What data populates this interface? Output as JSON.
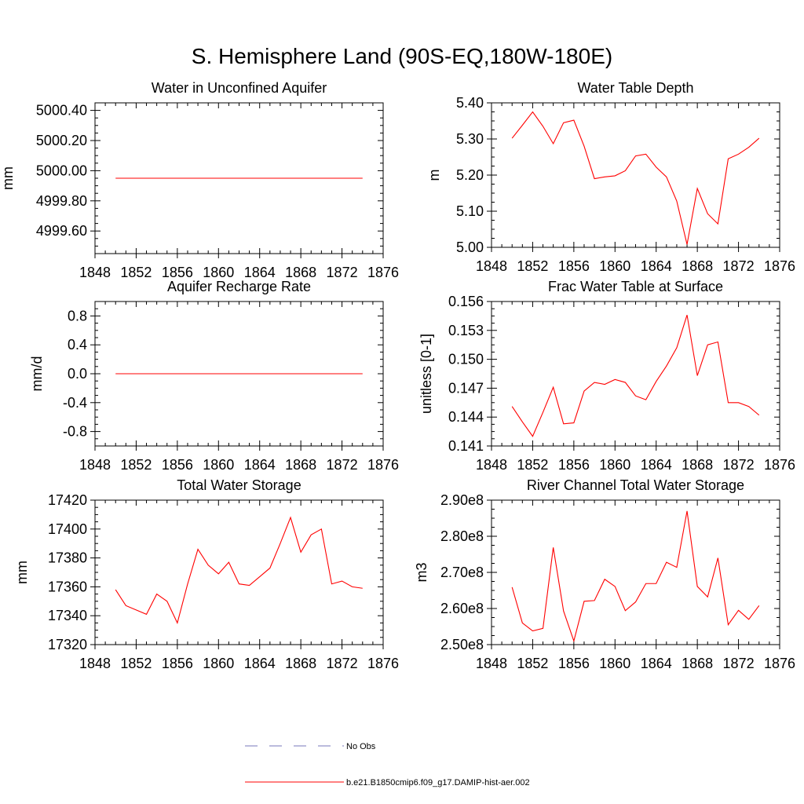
{
  "title": "S. Hemisphere Land (90S-EQ,180W-180E)",
  "colors": {
    "series": "#ff0000",
    "obs": "#7777bb",
    "axis": "#000000"
  },
  "legend": {
    "items": [
      {
        "label": "No Obs",
        "style": "dashed",
        "color": "#7777bb"
      },
      {
        "label": "b.e21.B1850cmip6.f09_g17.DAMIP-hist-aer.002",
        "style": "solid",
        "color": "#ff0000"
      }
    ]
  },
  "chart_data": [
    {
      "type": "line",
      "title": "Water in Unconfined Aquifer",
      "ylabel": "mm",
      "xlim": [
        1848,
        1876
      ],
      "ylim": [
        4999.45,
        5000.45
      ],
      "xticks": [
        1848,
        1852,
        1856,
        1860,
        1864,
        1868,
        1872,
        1876
      ],
      "xtick_labels": [
        "1848",
        "1852",
        "1856",
        "1860",
        "1864",
        "1868",
        "1872",
        "1876"
      ],
      "yticks": [
        4999.6,
        4999.8,
        5000.0,
        5000.2,
        5000.4
      ],
      "ytick_labels": [
        "4999.60",
        "4999.80",
        "5000.00",
        "5000.20",
        "5000.40"
      ],
      "x": [
        1850,
        1851,
        1852,
        1853,
        1854,
        1855,
        1856,
        1857,
        1858,
        1859,
        1860,
        1861,
        1862,
        1863,
        1864,
        1865,
        1866,
        1867,
        1868,
        1869,
        1870,
        1871,
        1872,
        1873,
        1874
      ],
      "series": [
        {
          "values": [
            4999.95,
            4999.95,
            4999.95,
            4999.95,
            4999.95,
            4999.95,
            4999.95,
            4999.95,
            4999.95,
            4999.95,
            4999.95,
            4999.95,
            4999.95,
            4999.95,
            4999.95,
            4999.95,
            4999.95,
            4999.95,
            4999.95,
            4999.95,
            4999.95,
            4999.95,
            4999.95,
            4999.95,
            4999.95
          ]
        }
      ]
    },
    {
      "type": "line",
      "title": "Water Table Depth",
      "ylabel": "m",
      "xlim": [
        1848,
        1876
      ],
      "ylim": [
        5.0,
        5.4
      ],
      "xticks": [
        1848,
        1852,
        1856,
        1860,
        1864,
        1868,
        1872,
        1876
      ],
      "xtick_labels": [
        "1848",
        "1852",
        "1856",
        "1860",
        "1864",
        "1868",
        "1872",
        "1876"
      ],
      "yticks": [
        5.0,
        5.1,
        5.2,
        5.3,
        5.4
      ],
      "ytick_labels": [
        "5.00",
        "5.10",
        "5.20",
        "5.30",
        "5.40"
      ],
      "x": [
        1850,
        1851,
        1852,
        1853,
        1854,
        1855,
        1856,
        1857,
        1858,
        1859,
        1860,
        1861,
        1862,
        1863,
        1864,
        1865,
        1866,
        1867,
        1868,
        1869,
        1870,
        1871,
        1872,
        1873,
        1874
      ],
      "series": [
        {
          "values": [
            5.302,
            5.338,
            5.375,
            5.335,
            5.287,
            5.345,
            5.352,
            5.28,
            5.19,
            5.195,
            5.198,
            5.212,
            5.253,
            5.258,
            5.222,
            5.195,
            5.128,
            5.008,
            5.163,
            5.093,
            5.065,
            5.245,
            5.258,
            5.277,
            5.302
          ]
        }
      ]
    },
    {
      "type": "line",
      "title": "Aquifer Recharge Rate",
      "ylabel": "mm/d",
      "xlim": [
        1848,
        1876
      ],
      "ylim": [
        -1.0,
        1.0
      ],
      "xticks": [
        1848,
        1852,
        1856,
        1860,
        1864,
        1868,
        1872,
        1876
      ],
      "xtick_labels": [
        "1848",
        "1852",
        "1856",
        "1860",
        "1864",
        "1868",
        "1872",
        "1876"
      ],
      "yticks": [
        -0.8,
        -0.4,
        0.0,
        0.4,
        0.8
      ],
      "ytick_labels": [
        "-0.8",
        "-0.4",
        "0.0",
        "0.4",
        "0.8"
      ],
      "x": [
        1850,
        1851,
        1852,
        1853,
        1854,
        1855,
        1856,
        1857,
        1858,
        1859,
        1860,
        1861,
        1862,
        1863,
        1864,
        1865,
        1866,
        1867,
        1868,
        1869,
        1870,
        1871,
        1872,
        1873,
        1874
      ],
      "series": [
        {
          "values": [
            0,
            0,
            0,
            0,
            0,
            0,
            0,
            0,
            0,
            0,
            0,
            0,
            0,
            0,
            0,
            0,
            0,
            0,
            0,
            0,
            0,
            0,
            0,
            0,
            0
          ]
        }
      ]
    },
    {
      "type": "line",
      "title": "Frac Water Table at Surface",
      "ylabel": "unitless [0-1]",
      "xlim": [
        1848,
        1876
      ],
      "ylim": [
        0.141,
        0.156
      ],
      "xticks": [
        1848,
        1852,
        1856,
        1860,
        1864,
        1868,
        1872,
        1876
      ],
      "xtick_labels": [
        "1848",
        "1852",
        "1856",
        "1860",
        "1864",
        "1868",
        "1872",
        "1876"
      ],
      "yticks": [
        0.141,
        0.144,
        0.147,
        0.15,
        0.153,
        0.156
      ],
      "ytick_labels": [
        "0.141",
        "0.144",
        "0.147",
        "0.150",
        "0.153",
        "0.156"
      ],
      "x": [
        1850,
        1851,
        1852,
        1853,
        1854,
        1855,
        1856,
        1857,
        1858,
        1859,
        1860,
        1861,
        1862,
        1863,
        1864,
        1865,
        1866,
        1867,
        1868,
        1869,
        1870,
        1871,
        1872,
        1873,
        1874
      ],
      "series": [
        {
          "values": [
            0.1451,
            0.1435,
            0.142,
            0.1445,
            0.1471,
            0.1433,
            0.1434,
            0.1467,
            0.1476,
            0.1474,
            0.1479,
            0.1476,
            0.1462,
            0.1458,
            0.1477,
            0.1493,
            0.1512,
            0.1546,
            0.1483,
            0.1515,
            0.1518,
            0.1455,
            0.1455,
            0.1451,
            0.1442
          ]
        }
      ]
    },
    {
      "type": "line",
      "title": "Total Water Storage",
      "ylabel": "mm",
      "xlim": [
        1848,
        1876
      ],
      "ylim": [
        17320,
        17420
      ],
      "xticks": [
        1848,
        1852,
        1856,
        1860,
        1864,
        1868,
        1872,
        1876
      ],
      "xtick_labels": [
        "1848",
        "1852",
        "1856",
        "1860",
        "1864",
        "1868",
        "1872",
        "1876"
      ],
      "yticks": [
        17320,
        17340,
        17360,
        17380,
        17400,
        17420
      ],
      "ytick_labels": [
        "17320",
        "17340",
        "17360",
        "17380",
        "17400",
        "17420"
      ],
      "x": [
        1850,
        1851,
        1852,
        1853,
        1854,
        1855,
        1856,
        1857,
        1858,
        1859,
        1860,
        1861,
        1862,
        1863,
        1864,
        1865,
        1866,
        1867,
        1868,
        1869,
        1870,
        1871,
        1872,
        1873,
        1874
      ],
      "series": [
        {
          "values": [
            17358,
            17347,
            17344,
            17341,
            17355,
            17350,
            17335,
            17362,
            17386,
            17375,
            17369,
            17377,
            17362,
            17361,
            17367,
            17373,
            17390,
            17408,
            17384,
            17396,
            17400,
            17362,
            17364,
            17360,
            17359
          ]
        }
      ]
    },
    {
      "type": "line",
      "title": "River Channel Total Water Storage",
      "ylabel": "m3",
      "xlim": [
        1848,
        1876
      ],
      "ylim": [
        250000000,
        290000000
      ],
      "xticks": [
        1848,
        1852,
        1856,
        1860,
        1864,
        1868,
        1872,
        1876
      ],
      "xtick_labels": [
        "1848",
        "1852",
        "1856",
        "1860",
        "1864",
        "1868",
        "1872",
        "1876"
      ],
      "yticks": [
        250000000,
        260000000,
        270000000,
        280000000,
        290000000
      ],
      "ytick_labels": [
        "2.50e8",
        "2.60e8",
        "2.70e8",
        "2.80e8",
        "2.90e8"
      ],
      "x": [
        1850,
        1851,
        1852,
        1853,
        1854,
        1855,
        1856,
        1857,
        1858,
        1859,
        1860,
        1861,
        1862,
        1863,
        1864,
        1865,
        1866,
        1867,
        1868,
        1869,
        1870,
        1871,
        1872,
        1873,
        1874
      ],
      "series": [
        {
          "values": [
            265900000,
            256000000,
            253800000,
            254500000,
            276900000,
            259300000,
            251000000,
            262000000,
            262200000,
            268100000,
            266100000,
            259400000,
            261800000,
            266900000,
            266900000,
            272800000,
            271400000,
            287000000,
            266100000,
            263200000,
            274000000,
            255500000,
            259500000,
            257000000,
            260800000
          ]
        }
      ]
    }
  ]
}
